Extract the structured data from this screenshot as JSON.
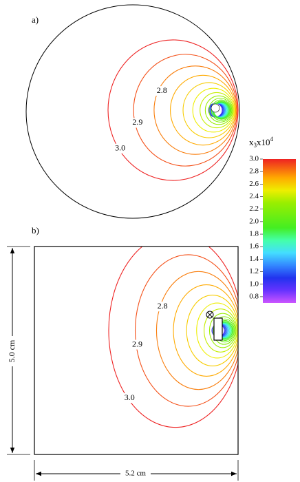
{
  "chart_data": [
    {
      "type": "contour",
      "panel_label": "a)",
      "domain": "disk",
      "levels": [
        1.0,
        1.1,
        1.2,
        1.3,
        1.4,
        1.5,
        1.6,
        1.7,
        1.8,
        1.9,
        2.0,
        2.1,
        2.2,
        2.3,
        2.4,
        2.5,
        2.6,
        2.7,
        2.8,
        2.9,
        3.0
      ],
      "contour_labels": [
        {
          "value": 2.8,
          "label": "2.8"
        },
        {
          "value": 2.9,
          "label": "2.9"
        },
        {
          "value": 3.0,
          "label": "3.0"
        }
      ]
    },
    {
      "type": "contour",
      "panel_label": "b)",
      "domain": "square",
      "levels": [
        1.0,
        1.1,
        1.2,
        1.3,
        1.4,
        1.5,
        1.6,
        1.7,
        1.8,
        1.9,
        2.0,
        2.1,
        2.2,
        2.3,
        2.4,
        2.5,
        2.6,
        2.7,
        2.8,
        2.9,
        3.0
      ],
      "contour_labels": [
        {
          "value": 2.8,
          "label": "2.8"
        },
        {
          "value": 2.9,
          "label": "2.9"
        },
        {
          "value": 3.0,
          "label": "3.0"
        }
      ],
      "height_label": "5.0 cm",
      "width_label": "5.2 cm"
    }
  ],
  "colorbar": {
    "title": "x",
    "title_sub": "3",
    "title_mid": "x10",
    "title_sup": "4",
    "lim": [
      0.7,
      3.0
    ],
    "ticks": [
      {
        "value": 3.0,
        "label": "3.0"
      },
      {
        "value": 2.8,
        "label": "2.8"
      },
      {
        "value": 2.6,
        "label": "2.6"
      },
      {
        "value": 2.4,
        "label": "2.4"
      },
      {
        "value": 2.2,
        "label": "2.2"
      },
      {
        "value": 2.0,
        "label": "2.0"
      },
      {
        "value": 1.8,
        "label": "1.8"
      },
      {
        "value": 1.6,
        "label": "1.6"
      },
      {
        "value": 1.4,
        "label": "1.4"
      },
      {
        "value": 1.2,
        "label": "1.2"
      },
      {
        "value": 1.0,
        "label": "1.0"
      },
      {
        "value": 0.8,
        "label": "0.8"
      }
    ],
    "stops": [
      0.7,
      0.9,
      1.1,
      1.3,
      1.5,
      1.7,
      1.9,
      2.3,
      2.5,
      2.7,
      3.0
    ],
    "colors": [
      "#cc55ff",
      "#6633ff",
      "#2233ee",
      "#3388ff",
      "#44ddff",
      "#44ffaa",
      "#44ee22",
      "#99ee00",
      "#eeee00",
      "#ffaa00",
      "#ee2222"
    ]
  }
}
